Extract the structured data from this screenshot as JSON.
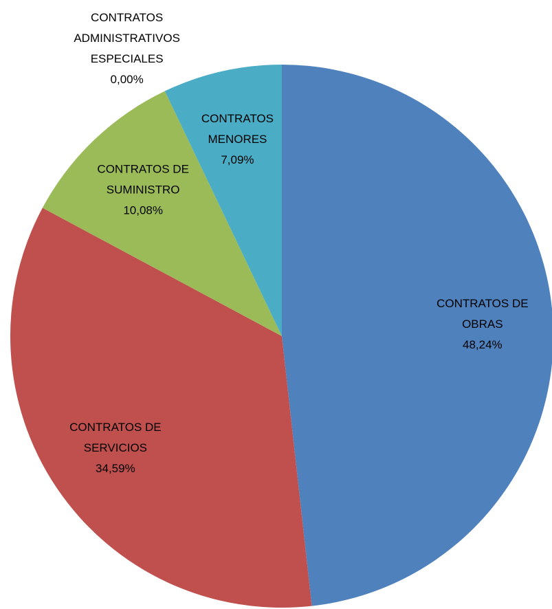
{
  "chart_data": {
    "type": "pie",
    "categories": [
      [
        "CONTRATOS DE",
        "OBRAS"
      ],
      [
        "CONTRATOS DE",
        "SERVICIOS"
      ],
      [
        "CONTRATOS DE",
        "SUMINISTRO"
      ],
      [
        "CONTRATOS",
        "ADMINISTRATIVOS",
        "ESPECIALES"
      ],
      [
        "CONTRATOS",
        "MENORES"
      ]
    ],
    "values": [
      48.24,
      34.59,
      10.08,
      0.0,
      7.09
    ],
    "value_labels": [
      "48,24%",
      "34,59%",
      "10,08%",
      "0,00%",
      "7,09%"
    ],
    "colors": [
      "#4f81bd",
      "#c0504d",
      "#9bbb59",
      "#8064a2",
      "#4bacc6"
    ]
  }
}
